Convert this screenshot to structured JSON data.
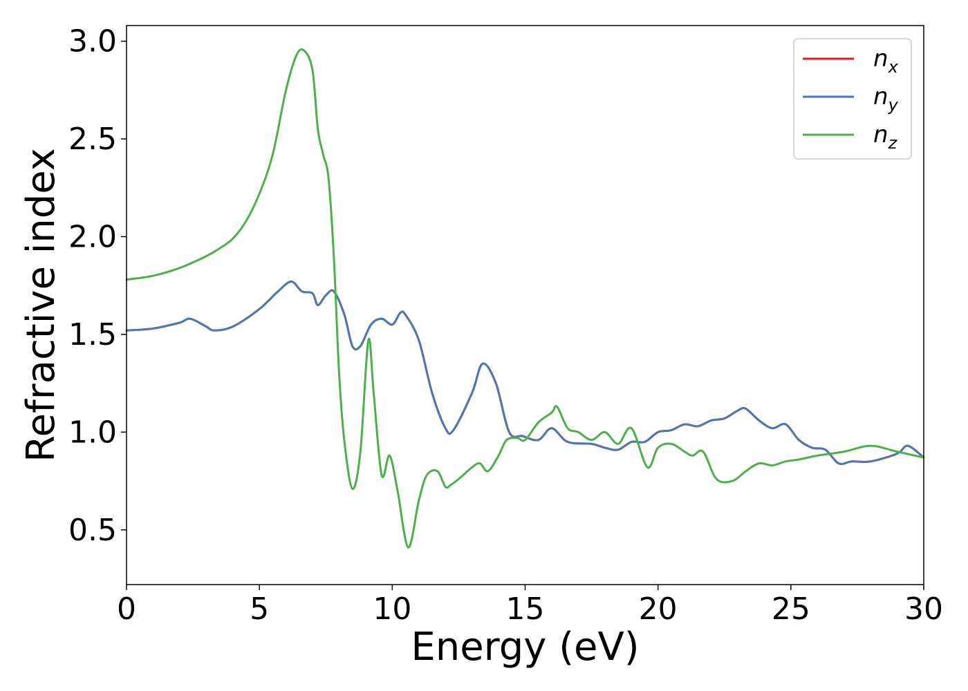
{
  "chart_data": {
    "type": "line",
    "xlabel": "Energy (eV)",
    "ylabel": "Refractive index",
    "xlim": [
      0,
      30
    ],
    "ylim": [
      0.22,
      3.08
    ],
    "xticks": [
      0,
      5,
      10,
      15,
      20,
      25,
      30
    ],
    "xtick_labels": [
      "0",
      "5",
      "10",
      "15",
      "20",
      "25",
      "30"
    ],
    "yticks": [
      0.5,
      1.0,
      1.5,
      2.0,
      2.5,
      3.0
    ],
    "ytick_labels": [
      "0.5",
      "1.0",
      "1.5",
      "2.0",
      "2.5",
      "3.0"
    ],
    "grid": false,
    "legend_position": "top-right",
    "series": [
      {
        "name": "n_x",
        "label_base": "n",
        "label_sub": "x",
        "color": "#e41a1c",
        "x": [
          0,
          1,
          2,
          2.4,
          3,
          3.3,
          4,
          5,
          5.7,
          6.2,
          6.6,
          7,
          7.2,
          7.5,
          7.8,
          8.2,
          8.5,
          8.8,
          9.2,
          9.6,
          10,
          10.3,
          10.5,
          11,
          11.5,
          12,
          12.3,
          13,
          13.4,
          13.9,
          14.4,
          14.9,
          15.5,
          16,
          16.6,
          17.5,
          18,
          18.5,
          19,
          19.5,
          20,
          20.5,
          21,
          21.5,
          22,
          22.5,
          23,
          23.3,
          23.8,
          24.3,
          24.8,
          25.3,
          25.8,
          26.3,
          26.8,
          27.3,
          28,
          29,
          29.4,
          30
        ],
        "y": [
          1.52,
          1.53,
          1.56,
          1.58,
          1.54,
          1.52,
          1.54,
          1.63,
          1.72,
          1.77,
          1.72,
          1.71,
          1.65,
          1.7,
          1.72,
          1.6,
          1.44,
          1.44,
          1.55,
          1.58,
          1.55,
          1.61,
          1.6,
          1.47,
          1.2,
          1.02,
          1.01,
          1.2,
          1.35,
          1.25,
          1.0,
          0.98,
          0.96,
          1.02,
          0.95,
          0.94,
          0.92,
          0.91,
          0.95,
          0.95,
          1.0,
          1.01,
          1.04,
          1.03,
          1.06,
          1.07,
          1.11,
          1.12,
          1.06,
          1.02,
          1.04,
          0.96,
          0.92,
          0.91,
          0.84,
          0.85,
          0.85,
          0.89,
          0.93,
          0.87
        ]
      },
      {
        "name": "n_y",
        "label_base": "n",
        "label_sub": "y",
        "color": "#4a78b0",
        "x": [
          0,
          1,
          2,
          2.4,
          3,
          3.3,
          4,
          5,
          5.7,
          6.2,
          6.6,
          7,
          7.2,
          7.5,
          7.8,
          8.2,
          8.5,
          8.8,
          9.2,
          9.6,
          10,
          10.3,
          10.5,
          11,
          11.5,
          12,
          12.3,
          13,
          13.4,
          13.9,
          14.4,
          14.9,
          15.5,
          16,
          16.6,
          17.5,
          18,
          18.5,
          19,
          19.5,
          20,
          20.5,
          21,
          21.5,
          22,
          22.5,
          23,
          23.3,
          23.8,
          24.3,
          24.8,
          25.3,
          25.8,
          26.3,
          26.8,
          27.3,
          28,
          29,
          29.4,
          30
        ],
        "y": [
          1.52,
          1.53,
          1.56,
          1.58,
          1.54,
          1.52,
          1.54,
          1.63,
          1.72,
          1.77,
          1.72,
          1.71,
          1.65,
          1.7,
          1.72,
          1.6,
          1.44,
          1.44,
          1.55,
          1.58,
          1.55,
          1.61,
          1.6,
          1.47,
          1.2,
          1.02,
          1.01,
          1.2,
          1.35,
          1.25,
          1.0,
          0.98,
          0.96,
          1.02,
          0.95,
          0.94,
          0.92,
          0.91,
          0.95,
          0.95,
          1.0,
          1.01,
          1.04,
          1.03,
          1.06,
          1.07,
          1.11,
          1.12,
          1.06,
          1.02,
          1.04,
          0.96,
          0.92,
          0.91,
          0.84,
          0.85,
          0.85,
          0.89,
          0.93,
          0.87
        ]
      },
      {
        "name": "n_z",
        "label_base": "n",
        "label_sub": "z",
        "color": "#4daf4a",
        "x": [
          0,
          1,
          2,
          3,
          3.5,
          4,
          4.5,
          5,
          5.5,
          6,
          6.4,
          6.7,
          7,
          7.2,
          7.4,
          7.6,
          7.8,
          8,
          8.2,
          8.5,
          8.8,
          9.1,
          9.3,
          9.6,
          9.9,
          10.2,
          10.6,
          11,
          11.3,
          11.7,
          12,
          12.2,
          12.5,
          13,
          13.3,
          13.6,
          14,
          14.3,
          14.7,
          15,
          15.5,
          16,
          16.2,
          16.6,
          17,
          17.5,
          18,
          18.5,
          19,
          19.6,
          20,
          20.5,
          21,
          21.3,
          21.7,
          22.2,
          22.8,
          23.3,
          23.8,
          24.3,
          24.8,
          25.3,
          26,
          27,
          28,
          29,
          30
        ],
        "y": [
          1.78,
          1.8,
          1.84,
          1.9,
          1.94,
          1.99,
          2.08,
          2.22,
          2.42,
          2.75,
          2.93,
          2.95,
          2.85,
          2.55,
          2.42,
          2.3,
          1.9,
          1.3,
          0.95,
          0.71,
          0.9,
          1.47,
          1.2,
          0.78,
          0.88,
          0.7,
          0.41,
          0.65,
          0.78,
          0.8,
          0.72,
          0.73,
          0.76,
          0.82,
          0.84,
          0.8,
          0.88,
          0.96,
          0.97,
          0.96,
          1.05,
          1.1,
          1.13,
          1.02,
          1.0,
          0.96,
          1.0,
          0.94,
          1.02,
          0.82,
          0.92,
          0.94,
          0.9,
          0.88,
          0.9,
          0.76,
          0.75,
          0.8,
          0.84,
          0.83,
          0.85,
          0.86,
          0.88,
          0.9,
          0.93,
          0.9,
          0.87
        ]
      }
    ]
  }
}
